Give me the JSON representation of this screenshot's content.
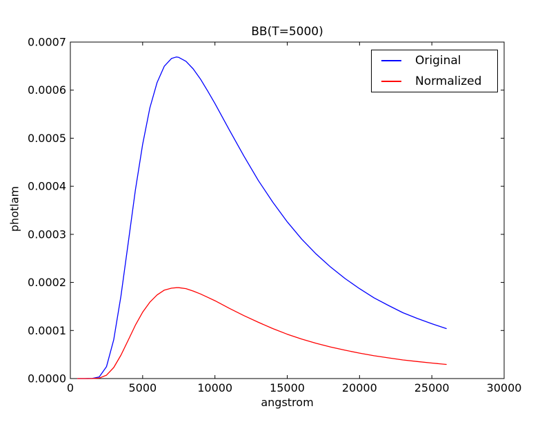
{
  "figure": {
    "kind": "matplotlib-line-plot",
    "background_color": "#ffffff",
    "axes_color": "#000000",
    "text_color": "#000000"
  },
  "legend": {
    "position": "upper right",
    "items": [
      {
        "label": "Original",
        "color": "#0000ff"
      },
      {
        "label": "Normalized",
        "color": "#ff0000"
      }
    ]
  },
  "chart_data": {
    "type": "line",
    "title": "BB(T=5000)",
    "xlabel": "angstrom",
    "ylabel": "photlam",
    "xlim": [
      0,
      30000
    ],
    "ylim": [
      0,
      0.0007
    ],
    "grid": false,
    "legend_position": "upper right",
    "xticks": [
      0,
      5000,
      10000,
      15000,
      20000,
      25000,
      30000
    ],
    "xtick_labels": [
      "0",
      "5000",
      "10000",
      "15000",
      "20000",
      "25000",
      "30000"
    ],
    "yticks": [
      0,
      0.0001,
      0.0002,
      0.0003,
      0.0004,
      0.0005,
      0.0006,
      0.0007
    ],
    "ytick_labels": [
      "0.0000",
      "0.0001",
      "0.0002",
      "0.0003",
      "0.0004",
      "0.0005",
      "0.0006",
      "0.0007"
    ],
    "x": [
      500,
      1000,
      1500,
      2000,
      2500,
      3000,
      3500,
      4000,
      4500,
      5000,
      5500,
      6000,
      6500,
      7000,
      7339,
      7500,
      8000,
      8500,
      9000,
      9500,
      10000,
      11000,
      12000,
      13000,
      14000,
      15000,
      16000,
      17000,
      18000,
      19000,
      20000,
      21000,
      22000,
      23000,
      24000,
      25000,
      26000
    ],
    "series": [
      {
        "name": "Original",
        "color": "#0000ff",
        "values": [
          0,
          0,
          1e-07,
          3.4e-06,
          2.47e-05,
          8.08e-05,
          0.000172,
          0.000282,
          0.000392,
          0.000487,
          0.000563,
          0.000616,
          0.00065,
          0.000666,
          0.000669,
          0.000668,
          0.00066,
          0.000644,
          0.000623,
          0.000598,
          0.000572,
          0.000517,
          0.000463,
          0.000412,
          0.000367,
          0.000326,
          0.00029,
          0.000259,
          0.000232,
          0.000208,
          0.000187,
          0.000168,
          0.000152,
          0.000137,
          0.000125,
          0.000114,
          0.000104
        ]
      },
      {
        "name": "Normalized",
        "color": "#ff0000",
        "values": [
          0,
          0,
          0,
          1e-06,
          7e-06,
          2.29e-05,
          4.87e-05,
          7.98e-05,
          0.000111,
          0.000138,
          0.000159,
          0.000174,
          0.000184,
          0.000188,
          0.000189,
          0.000189,
          0.000187,
          0.000182,
          0.000176,
          0.000169,
          0.000162,
          0.000146,
          0.000131,
          0.000117,
          0.000104,
          9.23e-05,
          8.21e-05,
          7.33e-05,
          6.57e-05,
          5.89e-05,
          5.29e-05,
          4.75e-05,
          4.3e-05,
          3.88e-05,
          3.54e-05,
          3.23e-05,
          2.94e-05
        ]
      }
    ]
  }
}
